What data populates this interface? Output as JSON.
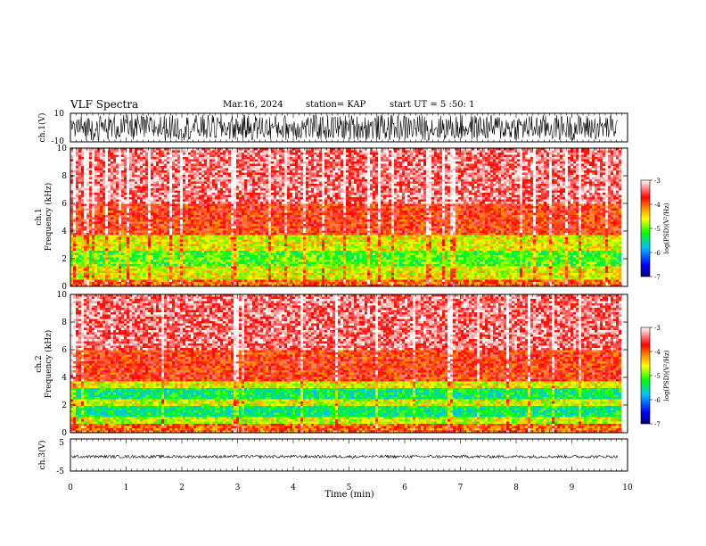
{
  "header": {
    "title": "VLF Spectra",
    "date": "Mar.16, 2024",
    "station": "station= KAP",
    "start": "start UT = 5 :50: 1"
  },
  "chart_data": [
    {
      "type": "line",
      "panel": "ch1-waveform",
      "ylabel": "ch.1(V)",
      "yticks": [
        "10",
        "-10"
      ],
      "ylim": [
        -10,
        10
      ],
      "xlim": [
        0,
        10
      ],
      "signal": "dense noisy waveform spanning most of the range"
    },
    {
      "type": "heatmap",
      "panel": "ch1-spectrogram",
      "ylabel": "ch.1\nFrequency (kHz)",
      "ylabel_line1": "ch.1",
      "ylabel_line2": "Frequency (kHz)",
      "yticks": [
        "0",
        "2",
        "4",
        "6",
        "8",
        "10"
      ],
      "ylim": [
        0,
        10
      ],
      "xlim": [
        0,
        10
      ],
      "data_end_min": 9.85,
      "bands": [
        {
          "from_khz": 0.0,
          "to_khz": 0.5,
          "level": -4.0
        },
        {
          "from_khz": 0.5,
          "to_khz": 1.4,
          "level": -4.6
        },
        {
          "from_khz": 1.4,
          "to_khz": 2.6,
          "level": -5.1
        },
        {
          "from_khz": 2.6,
          "to_khz": 3.7,
          "level": -4.6
        },
        {
          "from_khz": 3.7,
          "to_khz": 6.0,
          "level": -3.8
        },
        {
          "from_khz": 6.0,
          "to_khz": 10.0,
          "level": -3.4
        }
      ],
      "colorbar": {
        "label": "log(PSD)(V²/Hz)",
        "range": [
          -7,
          -3
        ],
        "ticks": [
          "-3",
          "-4",
          "-5",
          "-6",
          "-7"
        ]
      }
    },
    {
      "type": "heatmap",
      "panel": "ch2-spectrogram",
      "ylabel_line1": "ch.2",
      "ylabel_line2": "Frequency (kHz)",
      "yticks": [
        "0",
        "2",
        "4",
        "6",
        "8",
        "10"
      ],
      "ylim": [
        0,
        10
      ],
      "xlim": [
        0,
        10
      ],
      "data_end_min": 9.85,
      "bands": [
        {
          "from_khz": 0.0,
          "to_khz": 0.6,
          "level": -4.0
        },
        {
          "from_khz": 0.6,
          "to_khz": 1.2,
          "level": -4.7
        },
        {
          "from_khz": 1.2,
          "to_khz": 2.0,
          "level": -5.4
        },
        {
          "from_khz": 2.0,
          "to_khz": 2.4,
          "level": -4.7
        },
        {
          "from_khz": 2.4,
          "to_khz": 3.3,
          "level": -5.4
        },
        {
          "from_khz": 3.3,
          "to_khz": 3.7,
          "level": -4.6
        },
        {
          "from_khz": 3.7,
          "to_khz": 6.0,
          "level": -3.8
        },
        {
          "from_khz": 6.0,
          "to_khz": 10.0,
          "level": -3.4
        }
      ],
      "colorbar": {
        "label": "log(PSD)(V²/Hz)",
        "range": [
          -7,
          -3
        ],
        "ticks": [
          "-3",
          "-4",
          "-5",
          "-6",
          "-7"
        ]
      }
    },
    {
      "type": "line",
      "panel": "ch3-waveform",
      "ylabel": "ch.3(V)",
      "yticks": [
        "5",
        "-5"
      ],
      "ylim": [
        -5,
        5
      ],
      "xlim": [
        0,
        10
      ],
      "xlabel": "Time (min)",
      "xticks": [
        "0",
        "1",
        "2",
        "3",
        "4",
        "5",
        "6",
        "7",
        "8",
        "9",
        "10"
      ],
      "signal": "narrow band around -0.5 V"
    }
  ],
  "colors": {
    "axis": "#000000",
    "colormap": [
      "#000080",
      "#0000ff",
      "#00c0ff",
      "#00ff00",
      "#ffff00",
      "#ff8000",
      "#ff0000",
      "#ffffff"
    ]
  }
}
